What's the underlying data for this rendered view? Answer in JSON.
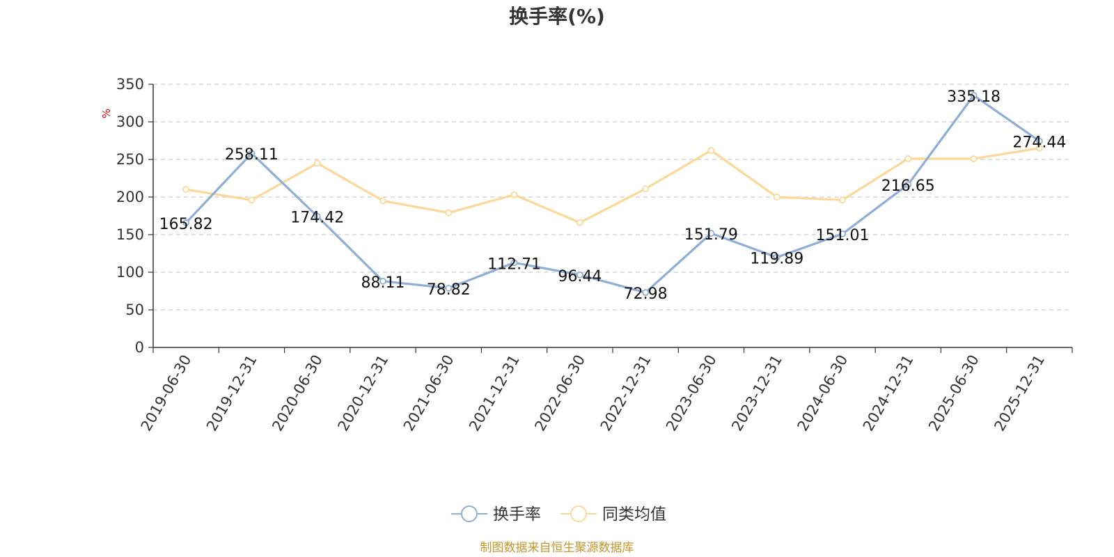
{
  "chart_data": {
    "type": "line",
    "title": "换手率(%)",
    "ylabel": "%",
    "xlabel": "",
    "ylim": [
      0,
      350
    ],
    "yticks": [
      0,
      50,
      100,
      150,
      200,
      250,
      300,
      350
    ],
    "grid": true,
    "legend_position": "bottom-center",
    "categories": [
      "2019-06-30",
      "2019-12-31",
      "2020-06-30",
      "2020-12-31",
      "2021-06-30",
      "2021-12-31",
      "2022-06-30",
      "2022-12-31",
      "2023-06-30",
      "2023-12-31",
      "2024-06-30",
      "2024-12-31",
      "2025-06-30",
      "2025-12-31"
    ],
    "series": [
      {
        "name": "换手率",
        "color": "#8eaed8",
        "values": [
          165.82,
          258.11,
          174.42,
          88.11,
          78.82,
          112.71,
          96.44,
          72.98,
          151.79,
          119.89,
          151.01,
          216.65,
          335.18,
          274.44
        ],
        "labels": [
          "165.82",
          "258.11",
          "174.42",
          "88.11",
          "78.82",
          "112.71",
          "96.44",
          "72.98",
          "151.79",
          "119.89",
          "151.01",
          "216.65",
          "335.18",
          "274.44"
        ]
      },
      {
        "name": "同类均值",
        "color": "#fbd898",
        "values": [
          210,
          196,
          245,
          195,
          179,
          203,
          166,
          211,
          262,
          200,
          196,
          251,
          251,
          265
        ]
      }
    ],
    "source": "制图数据来自恒生聚源数据库"
  }
}
